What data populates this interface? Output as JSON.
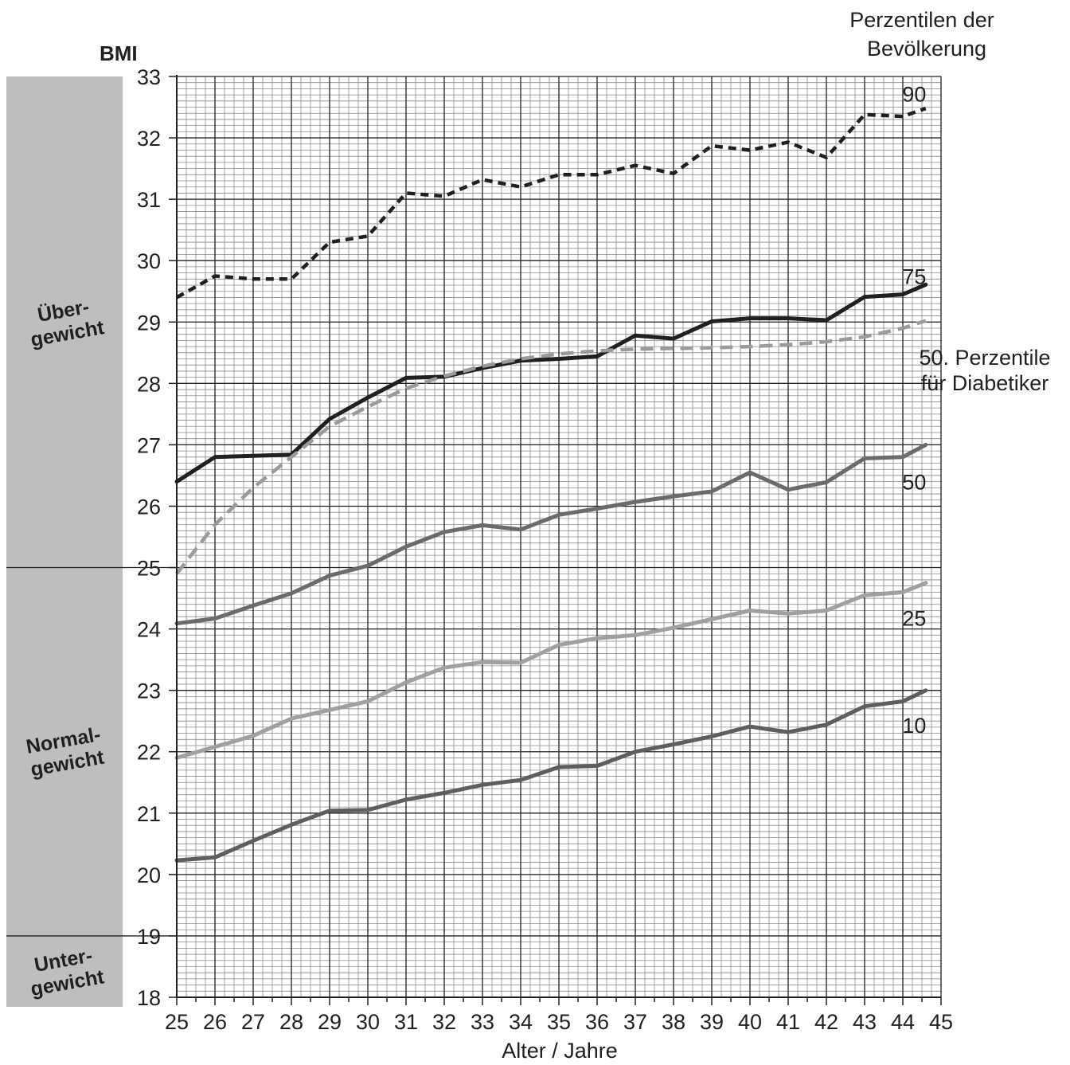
{
  "chart_data": {
    "type": "line",
    "ylabel": "BMI",
    "xlabel": "Alter / Jahre",
    "legend_title": [
      "Perzentilen der",
      "Bevölkerung"
    ],
    "xlim": [
      25,
      45
    ],
    "ylim": [
      18,
      33
    ],
    "grid": true,
    "x_ticks": [
      25,
      26,
      27,
      28,
      29,
      30,
      31,
      32,
      33,
      34,
      35,
      36,
      37,
      38,
      39,
      40,
      41,
      42,
      43,
      44,
      45
    ],
    "y_ticks": [
      18,
      19,
      20,
      21,
      22,
      23,
      24,
      25,
      26,
      27,
      28,
      29,
      30,
      31,
      32,
      33
    ],
    "bands": [
      {
        "label": [
          "Über-",
          "gewicht"
        ],
        "from": 25,
        "to": 33,
        "color": "#bebebe"
      },
      {
        "label": [
          "Normal-",
          "gewicht"
        ],
        "from": 19,
        "to": 25,
        "color": "#bebebe"
      },
      {
        "label": [
          "Unter-",
          "gewicht"
        ],
        "from": 18,
        "to": 19,
        "color": "#bebebe"
      }
    ],
    "series": [
      {
        "name": "90",
        "color": "#231f20",
        "dash": "10,7",
        "width": 4.5,
        "x": [
          25,
          26,
          27,
          28,
          29,
          30,
          31,
          32,
          33,
          34,
          35,
          36,
          37,
          38,
          39,
          40,
          41,
          42,
          43,
          44,
          44.6
        ],
        "y": [
          29.4,
          29.75,
          29.7,
          29.7,
          30.3,
          30.4,
          31.1,
          31.05,
          31.32,
          31.2,
          31.4,
          31.4,
          31.55,
          31.42,
          31.87,
          31.8,
          31.93,
          31.68,
          32.38,
          32.35,
          32.48
        ]
      },
      {
        "name": "75",
        "color": "#231f20",
        "dash": "",
        "width": 5,
        "x": [
          25,
          26,
          27,
          28,
          29,
          30,
          31,
          32,
          33,
          34,
          35,
          36,
          37,
          38,
          39,
          40,
          41,
          42,
          43,
          44,
          44.6
        ],
        "y": [
          26.4,
          26.8,
          26.82,
          26.84,
          27.42,
          27.77,
          28.09,
          28.11,
          28.25,
          28.37,
          28.4,
          28.44,
          28.78,
          28.73,
          29.01,
          29.06,
          29.06,
          29.03,
          29.41,
          29.45,
          29.61
        ]
      },
      {
        "name": "50. Perzentile für Diabetiker",
        "color": "#9a9a9a",
        "dash": "16,9",
        "width": 4.5,
        "x": [
          25,
          26,
          27,
          28,
          29,
          30,
          31,
          32,
          33,
          34,
          35,
          36,
          37,
          38,
          39,
          40,
          41,
          42,
          43,
          44,
          44.6
        ],
        "y": [
          24.9,
          25.7,
          26.3,
          26.8,
          27.3,
          27.62,
          27.92,
          28.12,
          28.28,
          28.4,
          28.48,
          28.53,
          28.56,
          28.57,
          28.58,
          28.6,
          28.63,
          28.68,
          28.76,
          28.9,
          29.02
        ]
      },
      {
        "name": "50",
        "color": "#6b6b6b",
        "dash": "",
        "width": 5,
        "x": [
          25,
          26,
          27,
          28,
          29,
          30,
          31,
          32,
          33,
          34,
          35,
          36,
          37,
          38,
          39,
          40,
          41,
          42,
          43,
          44,
          44.6
        ],
        "y": [
          24.09,
          24.17,
          24.38,
          24.58,
          24.87,
          25.03,
          25.34,
          25.58,
          25.69,
          25.62,
          25.86,
          25.96,
          26.07,
          26.16,
          26.24,
          26.55,
          26.27,
          26.39,
          26.78,
          26.8,
          27.0
        ]
      },
      {
        "name": "25",
        "color": "#a0a0a0",
        "dash": "",
        "width": 5,
        "x": [
          25,
          26,
          27,
          28,
          29,
          30,
          31,
          32,
          33,
          34,
          35,
          36,
          37,
          38,
          39,
          40,
          41,
          42,
          43,
          44,
          44.6
        ],
        "y": [
          21.9,
          22.08,
          22.26,
          22.54,
          22.68,
          22.82,
          23.13,
          23.37,
          23.46,
          23.45,
          23.74,
          23.85,
          23.9,
          24.02,
          24.16,
          24.3,
          24.25,
          24.3,
          24.55,
          24.6,
          24.75
        ]
      },
      {
        "name": "10",
        "color": "#5e5e5e",
        "dash": "",
        "width": 5,
        "x": [
          25,
          26,
          27,
          28,
          29,
          30,
          31,
          32,
          33,
          34,
          35,
          36,
          37,
          38,
          39,
          40,
          41,
          42,
          43,
          44,
          44.6
        ],
        "y": [
          20.23,
          20.28,
          20.55,
          20.81,
          21.04,
          21.05,
          21.22,
          21.33,
          21.46,
          21.54,
          21.75,
          21.77,
          22.0,
          22.12,
          22.25,
          22.41,
          22.32,
          22.44,
          22.74,
          22.82,
          23.0
        ]
      }
    ],
    "series_labels": [
      {
        "series": "90",
        "lines": [
          "90"
        ],
        "x": 44.3,
        "y": 32.72
      },
      {
        "series": "75",
        "lines": [
          "75"
        ],
        "x": 44.3,
        "y": 29.75
      },
      {
        "series": "50. Perzentile für Diabetiker",
        "lines": [
          "50. Perzentile",
          "für Diabetiker"
        ],
        "x": 45.0,
        "y": 28.43
      },
      {
        "series": "50",
        "lines": [
          "50"
        ],
        "x": 44.3,
        "y": 26.4
      },
      {
        "series": "25",
        "lines": [
          "25"
        ],
        "x": 44.3,
        "y": 24.18
      },
      {
        "series": "10",
        "lines": [
          "10"
        ],
        "x": 44.3,
        "y": 22.44
      }
    ]
  }
}
